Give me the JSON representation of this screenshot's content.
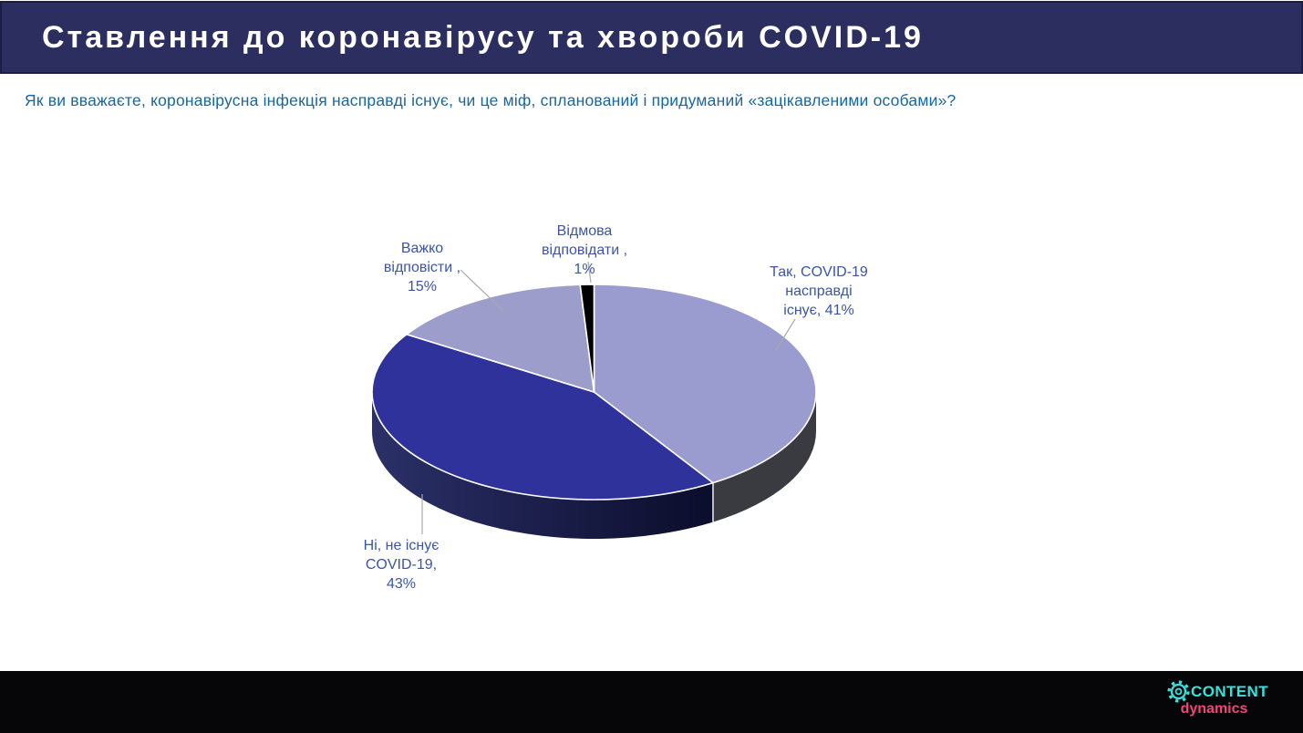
{
  "header": {
    "title": "Ставлення до коронавірусу та хвороби COVID-19",
    "bg_color": "#2B2E5F",
    "text_color": "#FFFFFF"
  },
  "question": {
    "text": "Як ви вважаєте, коронавірусна інфекція насправді існує, чи це міф, спланований і придуманий «зацікавленими особами»?",
    "color": "#19669E"
  },
  "chart_data": {
    "type": "pie",
    "style": "3d",
    "direction": "clockwise",
    "start_angle_deg": 0,
    "title": "",
    "legend": "none",
    "label_color": "#3A55A6",
    "slices": [
      {
        "name": "yes-exists",
        "label": "Так, COVID-19 насправді існує",
        "value": 41,
        "color": "#9A9BCE",
        "side_color": "#3A3A41",
        "label_lines": [
          "Так, COVID-19",
          "насправді",
          "існує, 41%"
        ]
      },
      {
        "name": "no-does-not-exist",
        "label": "Ні, не існує COVID-19",
        "value": 43,
        "color": "#2F329A",
        "side_gradient": [
          "#2B3068",
          "#0A0C2A"
        ],
        "label_lines": [
          "Ні, не існує",
          "COVID-19,",
          "43%"
        ]
      },
      {
        "name": "hard-to-answer",
        "label": "Важко відповісти",
        "value": 15,
        "color": "#9D9DCB",
        "side_color": "#3A3A41",
        "label_lines": [
          "Важко",
          "відповісти ,",
          "15%"
        ]
      },
      {
        "name": "refuse-to-answer",
        "label": "Відмова відповідати",
        "value": 1,
        "color": "#010101",
        "side_color": "#000000",
        "label_lines": [
          "Відмова",
          "відповідати ,",
          "1%"
        ]
      }
    ]
  },
  "footer": {
    "bg_color": "#060608",
    "logo": {
      "icon": "gear-icon",
      "line1": "CONTENT",
      "line1_color": "#35E3DB",
      "line2": "dynamics",
      "line2_color": "#F4437C"
    }
  }
}
